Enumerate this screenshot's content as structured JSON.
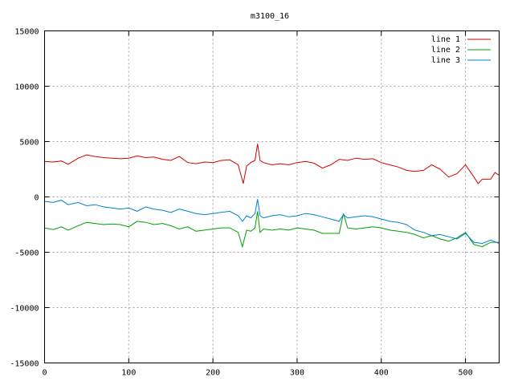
{
  "chart_data": {
    "type": "line",
    "title": "m3100_16",
    "xlabel": "",
    "ylabel": "",
    "xlim": [
      0,
      540
    ],
    "ylim": [
      -15000,
      15000
    ],
    "xticks": [
      0,
      100,
      200,
      300,
      400,
      500
    ],
    "yticks": [
      -15000,
      -10000,
      -5000,
      0,
      5000,
      10000,
      15000
    ],
    "grid": true,
    "legend_position": "top-right",
    "series": [
      {
        "name": "line 1",
        "color": "#d40000",
        "points": [
          [
            0,
            3200
          ],
          [
            10,
            3150
          ],
          [
            20,
            3250
          ],
          [
            28,
            2950
          ],
          [
            40,
            3500
          ],
          [
            50,
            3800
          ],
          [
            60,
            3650
          ],
          [
            70,
            3550
          ],
          [
            80,
            3500
          ],
          [
            90,
            3450
          ],
          [
            100,
            3500
          ],
          [
            110,
            3700
          ],
          [
            120,
            3550
          ],
          [
            130,
            3600
          ],
          [
            140,
            3400
          ],
          [
            150,
            3300
          ],
          [
            160,
            3650
          ],
          [
            170,
            3100
          ],
          [
            180,
            3000
          ],
          [
            190,
            3150
          ],
          [
            200,
            3100
          ],
          [
            210,
            3300
          ],
          [
            220,
            3350
          ],
          [
            230,
            2900
          ],
          [
            236,
            1200
          ],
          [
            240,
            2800
          ],
          [
            245,
            3100
          ],
          [
            250,
            3300
          ],
          [
            253,
            4800
          ],
          [
            256,
            3300
          ],
          [
            260,
            3100
          ],
          [
            270,
            2900
          ],
          [
            280,
            3000
          ],
          [
            290,
            2900
          ],
          [
            300,
            3100
          ],
          [
            310,
            3200
          ],
          [
            320,
            3050
          ],
          [
            330,
            2600
          ],
          [
            340,
            2900
          ],
          [
            350,
            3400
          ],
          [
            360,
            3300
          ],
          [
            370,
            3500
          ],
          [
            380,
            3400
          ],
          [
            390,
            3450
          ],
          [
            400,
            3100
          ],
          [
            410,
            2900
          ],
          [
            420,
            2700
          ],
          [
            430,
            2400
          ],
          [
            440,
            2300
          ],
          [
            450,
            2400
          ],
          [
            460,
            2900
          ],
          [
            470,
            2500
          ],
          [
            480,
            1800
          ],
          [
            490,
            2100
          ],
          [
            500,
            2900
          ],
          [
            510,
            1800
          ],
          [
            515,
            1200
          ],
          [
            520,
            1600
          ],
          [
            530,
            1600
          ],
          [
            535,
            2200
          ],
          [
            540,
            1950
          ]
        ]
      },
      {
        "name": "line 2",
        "color": "#00a000",
        "points": [
          [
            0,
            -2800
          ],
          [
            10,
            -2950
          ],
          [
            20,
            -2700
          ],
          [
            28,
            -3000
          ],
          [
            40,
            -2600
          ],
          [
            50,
            -2300
          ],
          [
            60,
            -2400
          ],
          [
            70,
            -2500
          ],
          [
            80,
            -2450
          ],
          [
            90,
            -2500
          ],
          [
            100,
            -2700
          ],
          [
            110,
            -2200
          ],
          [
            120,
            -2300
          ],
          [
            130,
            -2500
          ],
          [
            140,
            -2400
          ],
          [
            150,
            -2600
          ],
          [
            160,
            -2900
          ],
          [
            170,
            -2700
          ],
          [
            180,
            -3100
          ],
          [
            190,
            -3000
          ],
          [
            200,
            -2900
          ],
          [
            210,
            -2800
          ],
          [
            220,
            -2800
          ],
          [
            230,
            -3200
          ],
          [
            235,
            -4500
          ],
          [
            240,
            -3000
          ],
          [
            245,
            -3100
          ],
          [
            250,
            -2800
          ],
          [
            253,
            -1300
          ],
          [
            256,
            -3200
          ],
          [
            260,
            -2900
          ],
          [
            270,
            -3000
          ],
          [
            280,
            -2900
          ],
          [
            290,
            -3000
          ],
          [
            300,
            -2800
          ],
          [
            310,
            -2900
          ],
          [
            320,
            -3000
          ],
          [
            330,
            -3300
          ],
          [
            340,
            -3300
          ],
          [
            350,
            -3300
          ],
          [
            355,
            -1500
          ],
          [
            360,
            -2800
          ],
          [
            370,
            -2900
          ],
          [
            380,
            -2800
          ],
          [
            390,
            -2700
          ],
          [
            400,
            -2800
          ],
          [
            410,
            -3000
          ],
          [
            420,
            -3100
          ],
          [
            430,
            -3200
          ],
          [
            440,
            -3400
          ],
          [
            450,
            -3700
          ],
          [
            460,
            -3500
          ],
          [
            470,
            -3800
          ],
          [
            480,
            -4000
          ],
          [
            490,
            -3700
          ],
          [
            500,
            -3200
          ],
          [
            510,
            -4300
          ],
          [
            520,
            -4500
          ],
          [
            530,
            -4100
          ],
          [
            540,
            -4100
          ]
        ]
      },
      {
        "name": "line 3",
        "color": "#0080d0",
        "points": [
          [
            0,
            -400
          ],
          [
            10,
            -500
          ],
          [
            20,
            -300
          ],
          [
            28,
            -700
          ],
          [
            40,
            -500
          ],
          [
            50,
            -800
          ],
          [
            60,
            -700
          ],
          [
            70,
            -900
          ],
          [
            80,
            -1000
          ],
          [
            90,
            -1100
          ],
          [
            100,
            -1000
          ],
          [
            110,
            -1300
          ],
          [
            120,
            -900
          ],
          [
            130,
            -1100
          ],
          [
            140,
            -1200
          ],
          [
            150,
            -1400
          ],
          [
            160,
            -1100
          ],
          [
            170,
            -1300
          ],
          [
            180,
            -1500
          ],
          [
            190,
            -1600
          ],
          [
            200,
            -1500
          ],
          [
            210,
            -1400
          ],
          [
            220,
            -1300
          ],
          [
            230,
            -1700
          ],
          [
            235,
            -2200
          ],
          [
            240,
            -1700
          ],
          [
            245,
            -1900
          ],
          [
            250,
            -1500
          ],
          [
            253,
            -200
          ],
          [
            256,
            -1700
          ],
          [
            260,
            -1900
          ],
          [
            270,
            -1700
          ],
          [
            280,
            -1600
          ],
          [
            290,
            -1800
          ],
          [
            300,
            -1700
          ],
          [
            310,
            -1500
          ],
          [
            320,
            -1600
          ],
          [
            330,
            -1800
          ],
          [
            340,
            -2000
          ],
          [
            350,
            -2200
          ],
          [
            355,
            -1600
          ],
          [
            360,
            -1900
          ],
          [
            370,
            -1800
          ],
          [
            380,
            -1700
          ],
          [
            390,
            -1800
          ],
          [
            400,
            -2000
          ],
          [
            410,
            -2200
          ],
          [
            420,
            -2300
          ],
          [
            430,
            -2500
          ],
          [
            440,
            -3000
          ],
          [
            450,
            -3200
          ],
          [
            460,
            -3500
          ],
          [
            470,
            -3400
          ],
          [
            480,
            -3600
          ],
          [
            490,
            -3800
          ],
          [
            500,
            -3300
          ],
          [
            510,
            -4100
          ],
          [
            520,
            -4200
          ],
          [
            530,
            -3900
          ],
          [
            540,
            -4200
          ]
        ]
      }
    ]
  }
}
